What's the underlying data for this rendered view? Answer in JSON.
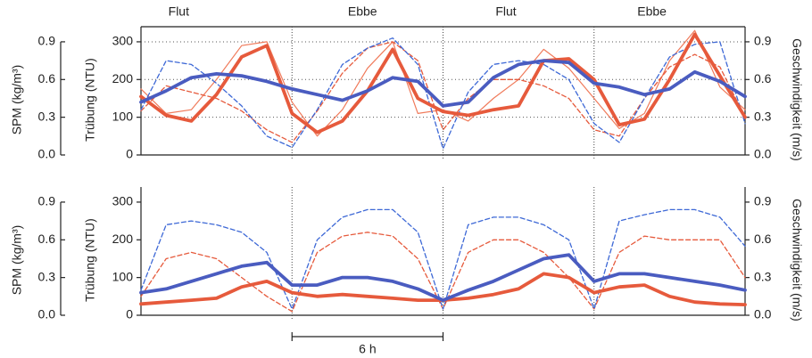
{
  "chart_data": [
    {
      "type": "line",
      "top_labels": [
        {
          "text": "Flut",
          "x": 1.5
        },
        {
          "text": "Ebbe",
          "x": 8.8
        },
        {
          "text": "Flut",
          "x": 14.5
        },
        {
          "text": "Ebbe",
          "x": 20.3
        }
      ],
      "ylabel": "Trübung (NTU)",
      "y2label": "Geschwindigkeit (m/s)",
      "y3label": "SPM (kg/m³)",
      "xlim": [
        0,
        24
      ],
      "vlines": [
        6,
        12,
        18
      ],
      "grid": true,
      "ylim": [
        0,
        340
      ],
      "yticks": [
        0,
        100,
        200,
        300
      ],
      "y2lim": [
        0,
        1.02
      ],
      "y2ticks": [
        {
          "value": 0,
          "label": "0.0"
        },
        0.3,
        0.6,
        0.9
      ],
      "y3lim": [
        0,
        1.02
      ],
      "y3ticks": [
        {
          "value": 0,
          "label": "0.0"
        },
        0.3,
        0.6,
        0.9
      ],
      "x": [
        0,
        1,
        2,
        3,
        4,
        5,
        6,
        7,
        8,
        9,
        10,
        11,
        12,
        13,
        14,
        15,
        16,
        17,
        18,
        19,
        20,
        21,
        22,
        23,
        24
      ],
      "series": [
        {
          "color": "#f07a5a",
          "style": "thin",
          "axis": "y",
          "values": [
            175,
            110,
            120,
            200,
            290,
            300,
            140,
            50,
            120,
            230,
            300,
            110,
            120,
            90,
            150,
            200,
            280,
            230,
            150,
            70,
            110,
            250,
            330,
            180,
            120
          ]
        },
        {
          "color": "#e65a3c",
          "style": "dashed",
          "axis": "y3",
          "values": [
            0.35,
            0.55,
            0.5,
            0.45,
            0.35,
            0.2,
            0.1,
            0.35,
            0.65,
            0.85,
            0.9,
            0.75,
            0.2,
            0.45,
            0.6,
            0.6,
            0.55,
            0.45,
            0.2,
            0.15,
            0.45,
            0.7,
            0.8,
            0.7,
            0.3
          ]
        },
        {
          "color": "#3d68d6",
          "style": "dashed",
          "axis": "y2",
          "values": [
            0.36,
            0.75,
            0.72,
            0.57,
            0.39,
            0.15,
            0.06,
            0.36,
            0.72,
            0.85,
            0.93,
            0.72,
            0.05,
            0.5,
            0.72,
            0.75,
            0.72,
            0.6,
            0.25,
            0.1,
            0.45,
            0.78,
            0.88,
            0.9,
            0.25
          ]
        },
        {
          "color": "#e65a3c",
          "style": "thick",
          "axis": "y",
          "values": [
            155,
            105,
            90,
            160,
            260,
            290,
            110,
            60,
            90,
            170,
            280,
            150,
            115,
            105,
            120,
            130,
            250,
            255,
            200,
            80,
            95,
            200,
            320,
            210,
            100
          ]
        },
        {
          "color": "#4a5cc0",
          "style": "thick",
          "axis": "y2",
          "values": [
            0.42,
            0.51,
            0.615,
            0.645,
            0.63,
            0.585,
            0.525,
            0.48,
            0.435,
            0.51,
            0.615,
            0.585,
            0.39,
            0.42,
            0.615,
            0.72,
            0.75,
            0.735,
            0.57,
            0.54,
            0.48,
            0.525,
            0.66,
            0.585,
            0.465
          ]
        }
      ]
    },
    {
      "type": "line",
      "ylabel": "Trübung (NTU)",
      "y2label": "Geschwindigkeit (m/s)",
      "y3label": "SPM (kg/m³)",
      "xlim": [
        0,
        24
      ],
      "vlines": [
        6,
        12,
        18
      ],
      "grid": false,
      "ylim": [
        0,
        340
      ],
      "yticks": [
        0,
        100,
        200,
        300
      ],
      "y2lim": [
        0,
        1.02
      ],
      "y2ticks": [
        {
          "value": 0,
          "label": "0.0"
        },
        0.3,
        0.6,
        0.9
      ],
      "y3lim": [
        0,
        1.02
      ],
      "y3ticks": [
        {
          "value": 0,
          "label": "0.0"
        },
        0.3,
        0.6,
        0.9
      ],
      "scale_bar": {
        "label": "6 h",
        "from": 6,
        "to": 12
      },
      "x": [
        0,
        1,
        2,
        3,
        4,
        5,
        6,
        7,
        8,
        9,
        10,
        11,
        12,
        13,
        14,
        15,
        16,
        17,
        18,
        19,
        20,
        21,
        22,
        23,
        24
      ],
      "series": [
        {
          "color": "#e65a3c",
          "style": "dashed",
          "axis": "y3",
          "values": [
            0.15,
            0.45,
            0.5,
            0.45,
            0.3,
            0.15,
            0.03,
            0.5,
            0.63,
            0.66,
            0.63,
            0.45,
            0.05,
            0.5,
            0.6,
            0.6,
            0.5,
            0.3,
            0.05,
            0.5,
            0.63,
            0.6,
            0.6,
            0.6,
            0.3
          ]
        },
        {
          "color": "#3d68d6",
          "style": "dashed",
          "axis": "y2",
          "values": [
            0.2,
            0.72,
            0.75,
            0.72,
            0.66,
            0.5,
            0.05,
            0.6,
            0.78,
            0.84,
            0.84,
            0.66,
            0.05,
            0.72,
            0.78,
            0.78,
            0.72,
            0.6,
            0.05,
            0.75,
            0.8,
            0.84,
            0.84,
            0.78,
            0.55
          ]
        },
        {
          "color": "#e65a3c",
          "style": "thick",
          "axis": "y",
          "values": [
            30,
            35,
            40,
            45,
            75,
            90,
            60,
            50,
            55,
            50,
            45,
            40,
            40,
            45,
            55,
            70,
            110,
            100,
            60,
            75,
            80,
            50,
            35,
            30,
            28
          ]
        },
        {
          "color": "#4a5cc0",
          "style": "thick",
          "axis": "y2",
          "values": [
            0.18,
            0.21,
            0.27,
            0.33,
            0.39,
            0.42,
            0.24,
            0.24,
            0.3,
            0.3,
            0.27,
            0.21,
            0.12,
            0.2,
            0.27,
            0.36,
            0.45,
            0.48,
            0.27,
            0.33,
            0.33,
            0.3,
            0.27,
            0.24,
            0.2
          ]
        }
      ]
    }
  ]
}
